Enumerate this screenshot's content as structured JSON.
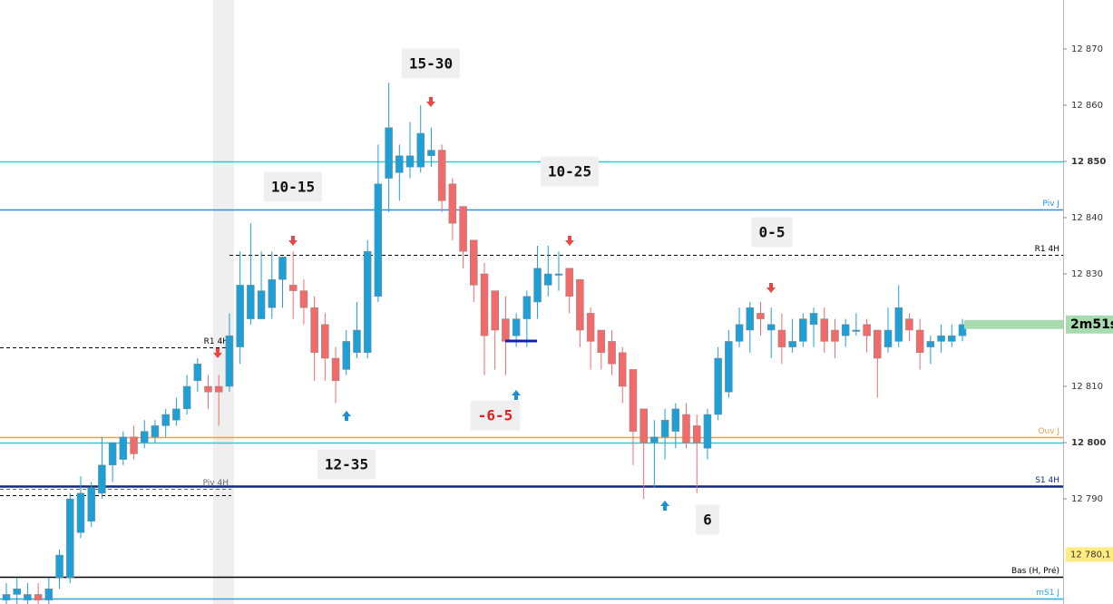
{
  "chart_data": {
    "type": "candlestick",
    "ylim": [
      12771.3,
      12878.7
    ],
    "yticks": [
      {
        "value": 12870,
        "label": "12 870"
      },
      {
        "value": 12860,
        "label": "12 860"
      },
      {
        "value": 12850,
        "label": "12 850",
        "bold": true
      },
      {
        "value": 12840,
        "label": "12 840"
      },
      {
        "value": 12830,
        "label": "12 830"
      },
      {
        "value": 12810,
        "label": "12 810"
      },
      {
        "value": 12800,
        "label": "12 800",
        "bold": true
      },
      {
        "value": 12790,
        "label": "12 790"
      }
    ],
    "up_color": "#1e9fd6",
    "down_color": "#f26b6b",
    "open": [
      12772,
      12773,
      12772,
      12773,
      12772,
      12776,
      12776,
      12784,
      12786,
      12791,
      12796,
      12797,
      12801,
      12800,
      12801,
      12803,
      12804,
      12806,
      12811,
      12810,
      12810,
      12810,
      12817,
      12822,
      12822,
      12824,
      12829,
      12828,
      12827,
      12824,
      12821,
      12815,
      12813,
      12816,
      12816,
      12826,
      12847,
      12848,
      12849,
      12849,
      12851,
      12852,
      12846,
      12842,
      12836,
      12830,
      12827,
      12822,
      12819,
      12822,
      12825,
      12828,
      12830,
      12831,
      12829,
      12823,
      12820,
      12818,
      12816,
      12813,
      12806,
      12800,
      12801,
      12802,
      12805,
      12803,
      12799,
      12805,
      12809,
      12818,
      12820,
      12823,
      12820,
      12820,
      12817,
      12818,
      12821,
      12822,
      12820,
      12819,
      12820,
      12821,
      12820,
      12817,
      12818,
      12822,
      12820,
      12817,
      12818,
      12818,
      12819
    ],
    "high": [
      12775,
      12776,
      12775,
      12775,
      12776,
      12781,
      12791,
      12794,
      12793,
      12801,
      12800,
      12802,
      12803,
      12804,
      12804,
      12806,
      12808,
      12812,
      12815,
      12812,
      12812,
      12823,
      12834,
      12839,
      12834,
      12834,
      12833,
      12834,
      12829,
      12826,
      12823,
      12817,
      12820,
      12825,
      12836,
      12853,
      12864,
      12853,
      12857,
      12860,
      12856,
      12853,
      12847,
      12842,
      12836,
      12832,
      12827,
      12826,
      12823,
      12827,
      12835,
      12835,
      12834,
      12831,
      12829,
      12824,
      12820,
      12820,
      12817,
      12813,
      12806,
      12804,
      12806,
      12807,
      12807,
      12805,
      12806,
      12817,
      12820,
      12824,
      12825,
      12825,
      12824,
      12823,
      12822,
      12823,
      12824,
      12824,
      12822,
      12822,
      12823,
      12822,
      12820,
      12824,
      12828,
      12823,
      12822,
      12819,
      12821,
      12821,
      12822
    ],
    "low": [
      12771,
      12771,
      12771,
      12771,
      12771,
      12774,
      12775,
      12783,
      12785,
      12790,
      12793,
      12796,
      12797,
      12799,
      12800,
      12801,
      12803,
      12805,
      12809,
      12806,
      12803,
      12809,
      12814,
      12821,
      12822,
      12822,
      12824,
      12822,
      12821,
      12811,
      12811,
      12807,
      12812,
      12815,
      12815,
      12825,
      12841,
      12843,
      12847,
      12848,
      12849,
      12841,
      12836,
      12831,
      12825,
      12812,
      12813,
      12812,
      12817,
      12817,
      12822,
      12826,
      12827,
      12823,
      12817,
      12813,
      12813,
      12812,
      12807,
      12796,
      12790,
      12792,
      12797,
      12799,
      12799,
      12791,
      12797,
      12804,
      12808,
      12817,
      12816,
      12819,
      12815,
      12814,
      12816,
      12817,
      12817,
      12816,
      12815,
      12817,
      12819,
      12816,
      12808,
      12816,
      12817,
      12818,
      12813,
      12814,
      12816,
      12817,
      12818
    ],
    "close": [
      12773,
      12774,
      12773,
      12772,
      12774,
      12780,
      12790,
      12791,
      12792,
      12796,
      12800,
      12801,
      12798,
      12802,
      12803,
      12805,
      12806,
      12810,
      12814,
      12809,
      12809,
      12819,
      12828,
      12828,
      12827,
      12829,
      12833,
      12827,
      12824,
      12816,
      12815,
      12811,
      12818,
      12820,
      12834,
      12846,
      12856,
      12851,
      12851,
      12855,
      12852,
      12843,
      12839,
      12834,
      12828,
      12819,
      12820,
      12818,
      12822,
      12826,
      12831,
      12830,
      12830,
      12826,
      12820,
      12818,
      12816,
      12814,
      12810,
      12802,
      12800,
      12801,
      12804,
      12806,
      12800,
      12800,
      12805,
      12815,
      12818,
      12821,
      12824,
      12822,
      12821,
      12817,
      12818,
      12822,
      12823,
      12818,
      12818,
      12821,
      12820,
      12819,
      12815,
      12820,
      12824,
      12820,
      12816,
      12818,
      12819,
      12819,
      12821
    ],
    "levels": [
      {
        "value": 12850,
        "color": "#3cc6c8"
      },
      {
        "value": 12800,
        "color": "#3cc6c8"
      },
      {
        "label": "Piv J",
        "value": 12841.5,
        "color": "#2a8fe6"
      },
      {
        "label": "R1 4H",
        "value": 12833.4,
        "color": "#000000",
        "style": "dashed",
        "span": "right"
      },
      {
        "label": "R1 4H",
        "value": 12817,
        "color": "#000000",
        "style": "dashed",
        "span": "left"
      },
      {
        "label": "Ouv J",
        "value": 12801,
        "color": "#f0a050"
      },
      {
        "label": "S1 4H",
        "value": 12792.2,
        "color": "#102a80"
      },
      {
        "label": "Piv 4H",
        "value": 12791.7,
        "color": "#666666",
        "style": "dashed",
        "span": "left"
      },
      {
        "value": 12790.7,
        "color": "#000000",
        "style": "dashed",
        "span": "left"
      },
      {
        "label": "Bas (H, Pré)",
        "value": 12776.1,
        "color": "#000000"
      },
      {
        "label": "mS1 J",
        "value": 12772.3,
        "color": "#2aa8e0"
      }
    ],
    "price_label": {
      "value": 12780.1,
      "label": "12 780,1"
    },
    "timer": "2m51s",
    "annotations": [
      {
        "text": "15-30",
        "color": "#111111"
      },
      {
        "text": "10-15",
        "color": "#111111"
      },
      {
        "text": "10-25",
        "color": "#111111"
      },
      {
        "text": "0-5",
        "color": "#111111"
      },
      {
        "text": "12-35",
        "color": "#111111"
      },
      {
        "text": "-6-5",
        "color": "#e02020"
      },
      {
        "text": "6",
        "color": "#111111"
      }
    ]
  }
}
